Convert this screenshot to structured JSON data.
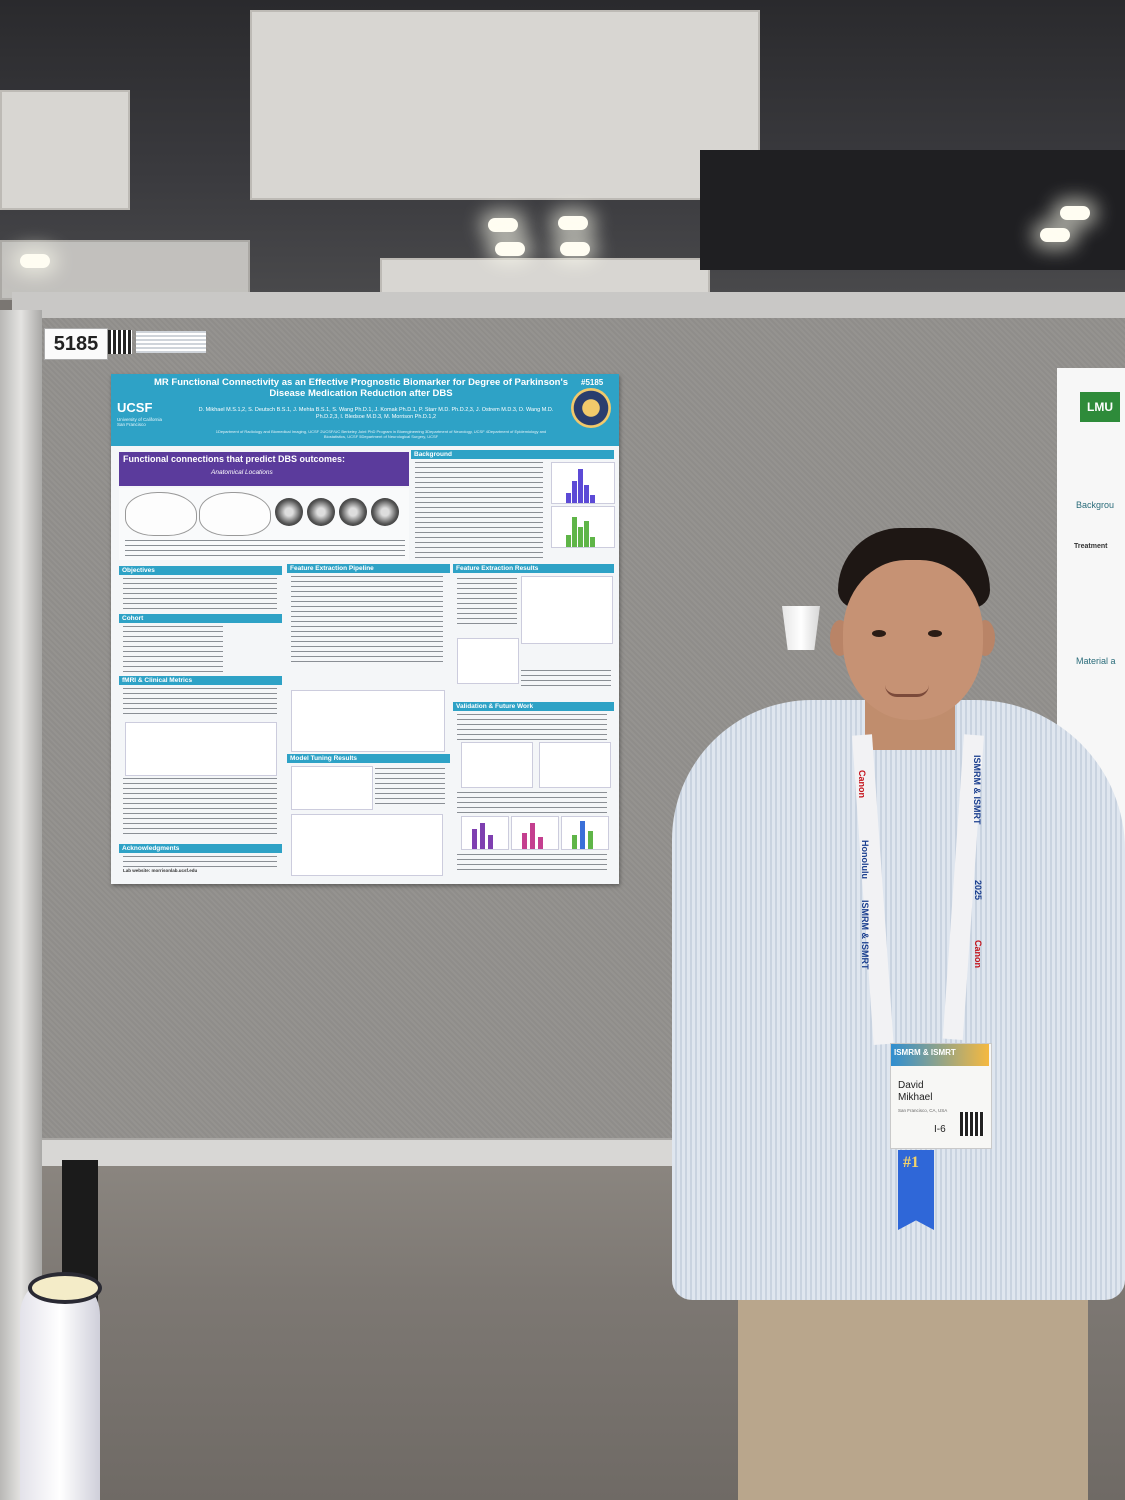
{
  "board": {
    "number": "5185"
  },
  "poster": {
    "title": "MR Functional Connectivity as an Effective Prognostic Biomarker for Degree of Parkinson's Disease Medication Reduction after DBS",
    "id": "#5185",
    "logo": "UCSF",
    "logo_sub": "University of California San Francisco",
    "authors": "D. Mikhael M.S.1,2, S. Deutsch B.S.1, J. Mehta B.S.1, S. Wang Ph.D.1, J. Komak Ph.D.1, P. Starr M.D. Ph.D.2,3, J. Ostrem M.D.3, D. Wang M.D. Ph.D.2,3, I. Bledsoe M.D.3, M. Morrison Ph.D.1,2",
    "affiliations": "1Department of Radiology and Biomedical Imaging, UCSF 2UCSF/UC Berkeley Joint PhD Program in Bioengineering 3Department of Neurology, UCSF 4Department of Epidemiology and Biostatistics, UCSF 5Department of Neurological Surgery, UCSF",
    "banner_title": "Functional connections that predict DBS outcomes:",
    "banner_sub": "Anatomical Locations",
    "sections": {
      "background": "Background",
      "objectives": "Objectives",
      "cohort": "Cohort",
      "mri": "fMRI & Clinical Metrics",
      "acknowledgments": "Acknowledgments",
      "feature_pipeline": "Feature Extraction Pipeline",
      "model_tuning": "Model Tuning Results",
      "feature_results": "Feature Extraction Results",
      "validation": "Validation & Future Work"
    },
    "website": "Lab website: morrisonlab.ucsf.edu"
  },
  "right_poster": {
    "logo": "LMU",
    "heading": "Backgrou",
    "treatment": "Treatment",
    "material": "Material a"
  },
  "badge": {
    "brand": "ISMRM & ISMRT",
    "first_name": "David",
    "last_name": "Mikhael",
    "location": "San Francisco, CA, USA",
    "code": "I-6",
    "ribbon": "#1"
  },
  "lanyard": {
    "sponsor": "Canon",
    "event": "ISMRM & ISMRT",
    "city": "Honolulu",
    "year": "2025"
  },
  "colors": {
    "poster_header": "#2ea2c6",
    "banner": "#5b3b9c",
    "shirt": "#dfe6ef",
    "pants": "#b9a68c"
  }
}
